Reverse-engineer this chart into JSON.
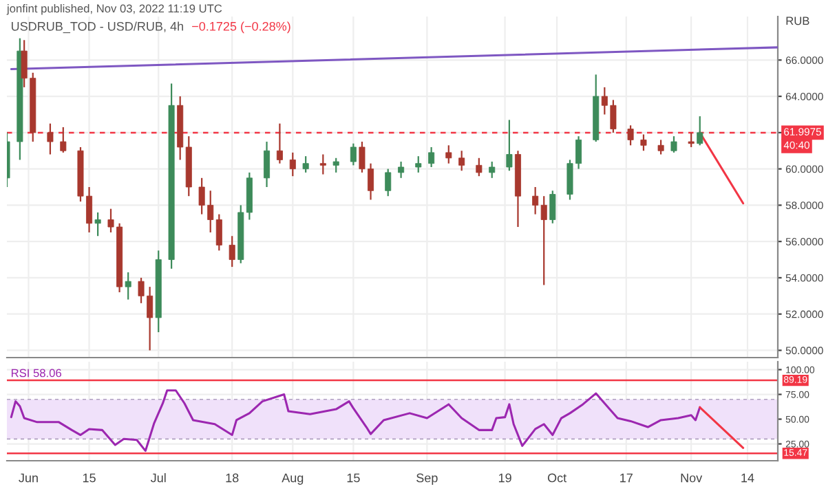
{
  "chart_data": [
    {
      "type": "candlestick",
      "title": "USDRUB_TOD - USD/RUB, 4h",
      "subtitle": "−0.1725 (−0.28%)",
      "ylabel": "RUB",
      "x": [
        "2022-05-27",
        "2022-05-30",
        "2022-05-31",
        "2022-06-02",
        "2022-06-06",
        "2022-06-09",
        "2022-06-13",
        "2022-06-15",
        "2022-06-17",
        "2022-06-20",
        "2022-06-22",
        "2022-06-24",
        "2022-06-27",
        "2022-06-29",
        "2022-07-01",
        "2022-07-04",
        "2022-07-06",
        "2022-07-08",
        "2022-07-11",
        "2022-07-13",
        "2022-07-15",
        "2022-07-18",
        "2022-07-20",
        "2022-07-22",
        "2022-07-26",
        "2022-07-29",
        "2022-08-01",
        "2022-08-04",
        "2022-08-08",
        "2022-08-11",
        "2022-08-15",
        "2022-08-17",
        "2022-08-19",
        "2022-08-23",
        "2022-08-26",
        "2022-08-30",
        "2022-09-02",
        "2022-09-06",
        "2022-09-09",
        "2022-09-13",
        "2022-09-16",
        "2022-09-20",
        "2022-09-22",
        "2022-09-26",
        "2022-09-28",
        "2022-09-30",
        "2022-10-04",
        "2022-10-06",
        "2022-10-10",
        "2022-10-12",
        "2022-10-14",
        "2022-10-18",
        "2022-10-21",
        "2022-10-25",
        "2022-10-28",
        "2022-11-01",
        "2022-11-03"
      ],
      "ohlc": [
        [
          59.5,
          62.0,
          59.0,
          61.5
        ],
        [
          61.5,
          67.2,
          60.5,
          66.5
        ],
        [
          66.5,
          67.1,
          64.5,
          65.0
        ],
        [
          65.0,
          65.3,
          61.5,
          62.0
        ],
        [
          62.0,
          62.5,
          60.8,
          61.5
        ],
        [
          61.5,
          62.3,
          60.9,
          61.0
        ],
        [
          61.0,
          61.2,
          58.2,
          58.5
        ],
        [
          58.5,
          59.0,
          56.5,
          57.0
        ],
        [
          57.0,
          57.6,
          56.3,
          57.2
        ],
        [
          57.2,
          57.8,
          56.5,
          56.8
        ],
        [
          56.8,
          57.0,
          53.2,
          53.5
        ],
        [
          53.5,
          54.3,
          52.8,
          53.8
        ],
        [
          53.8,
          54.0,
          52.6,
          53.0
        ],
        [
          53.0,
          53.5,
          50.0,
          51.8
        ],
        [
          51.8,
          55.5,
          51.0,
          55.0
        ],
        [
          55.0,
          64.7,
          54.5,
          63.5
        ],
        [
          63.5,
          64.0,
          60.5,
          61.2
        ],
        [
          61.2,
          61.8,
          58.5,
          59.0
        ],
        [
          59.0,
          59.5,
          57.5,
          58.0
        ],
        [
          58.0,
          58.8,
          56.5,
          57.2
        ],
        [
          57.2,
          57.5,
          55.5,
          55.8
        ],
        [
          55.8,
          56.3,
          54.6,
          55.0
        ],
        [
          55.0,
          58.0,
          54.8,
          57.6
        ],
        [
          57.6,
          59.8,
          57.2,
          59.5
        ],
        [
          59.5,
          61.5,
          59.0,
          61.0
        ],
        [
          61.0,
          62.5,
          60.3,
          60.5
        ],
        [
          60.5,
          60.9,
          59.6,
          60.0
        ],
        [
          60.0,
          60.7,
          59.8,
          60.3
        ],
        [
          60.3,
          60.8,
          59.7,
          60.2
        ],
        [
          60.2,
          60.6,
          59.8,
          60.4
        ],
        [
          60.4,
          61.4,
          60.2,
          61.2
        ],
        [
          61.2,
          61.5,
          59.8,
          60.0
        ],
        [
          60.0,
          60.3,
          58.3,
          58.8
        ],
        [
          58.8,
          60.0,
          58.5,
          59.8
        ],
        [
          59.8,
          60.4,
          59.5,
          60.1
        ],
        [
          60.1,
          60.7,
          59.8,
          60.3
        ],
        [
          60.3,
          61.2,
          60.1,
          60.9
        ],
        [
          60.9,
          61.3,
          60.3,
          60.6
        ],
        [
          60.6,
          61.0,
          59.9,
          60.2
        ],
        [
          60.2,
          60.6,
          59.6,
          59.8
        ],
        [
          59.8,
          60.4,
          59.5,
          60.1
        ],
        [
          60.1,
          62.7,
          59.9,
          60.8
        ],
        [
          60.8,
          61.0,
          56.8,
          58.5
        ],
        [
          58.5,
          59.0,
          57.5,
          58.0
        ],
        [
          58.0,
          58.5,
          53.6,
          57.2
        ],
        [
          57.2,
          58.8,
          57.0,
          58.6
        ],
        [
          58.6,
          60.5,
          58.3,
          60.3
        ],
        [
          60.3,
          61.8,
          60.0,
          61.6
        ],
        [
          61.6,
          65.2,
          61.5,
          64.0
        ],
        [
          64.0,
          64.5,
          63.0,
          63.5
        ],
        [
          63.5,
          63.8,
          62.0,
          62.2
        ],
        [
          62.2,
          62.4,
          61.3,
          61.6
        ],
        [
          61.6,
          61.9,
          61.0,
          61.3
        ],
        [
          61.3,
          61.6,
          60.8,
          61.0
        ],
        [
          61.0,
          61.8,
          60.9,
          61.5
        ],
        [
          61.5,
          62.0,
          61.2,
          61.4
        ],
        [
          61.4,
          62.9,
          61.3,
          62.0
        ]
      ],
      "colors": [
        "#3d8b5a",
        "#3d8b5a",
        "#a8382e",
        "#a8382e",
        "#a8382e",
        "#a8382e",
        "#a8382e",
        "#a8382e",
        "#3d8b5a",
        "#a8382e",
        "#a8382e",
        "#3d8b5a",
        "#a8382e",
        "#a8382e",
        "#3d8b5a",
        "#3d8b5a",
        "#a8382e",
        "#a8382e",
        "#a8382e",
        "#a8382e",
        "#a8382e",
        "#a8382e",
        "#3d8b5a",
        "#3d8b5a",
        "#3d8b5a",
        "#a8382e",
        "#a8382e",
        "#3d8b5a",
        "#a8382e",
        "#3d8b5a",
        "#3d8b5a",
        "#a8382e",
        "#a8382e",
        "#3d8b5a",
        "#3d8b5a",
        "#3d8b5a",
        "#3d8b5a",
        "#a8382e",
        "#a8382e",
        "#a8382e",
        "#3d8b5a",
        "#3d8b5a",
        "#a8382e",
        "#a8382e",
        "#a8382e",
        "#3d8b5a",
        "#3d8b5a",
        "#3d8b5a",
        "#3d8b5a",
        "#a8382e",
        "#a8382e",
        "#a8382e",
        "#a8382e",
        "#a8382e",
        "#3d8b5a",
        "#a8382e",
        "#3d8b5a"
      ],
      "series": [
        {
          "type": "line",
          "color": "#7e57c2",
          "x": [
            "2022-05-28",
            "2022-11-21"
          ],
          "values": [
            65.5,
            66.7
          ]
        },
        {
          "type": "line",
          "color": "#f23645",
          "x": [
            "2022-11-03",
            "2022-11-13"
          ],
          "values": [
            62.0,
            58.1
          ]
        }
      ],
      "xlim": [
        "2022-05-27",
        "2022-11-21"
      ],
      "ylim": [
        49.6,
        68.4
      ],
      "yticks": [
        {
          "value": 50,
          "label": "50.0000"
        },
        {
          "value": 52,
          "label": "52.0000"
        },
        {
          "value": 54,
          "label": "54.0000"
        },
        {
          "value": 56,
          "label": "56.0000"
        },
        {
          "value": 58,
          "label": "58.0000"
        },
        {
          "value": 60,
          "label": "60.0000"
        },
        {
          "value": 62,
          "label": null
        },
        {
          "value": 64,
          "label": "64.0000"
        },
        {
          "value": 66,
          "label": "66.0000"
        }
      ],
      "ref_lines": [
        {
          "axis": "y",
          "value": 61.9975,
          "label": "61.9975",
          "color": "#f23645",
          "line_style": "dashed"
        }
      ],
      "annotations": [
        "jonfint published, Nov 03, 2022 11:19 UTC",
        "40:40"
      ],
      "grid": true,
      "tick_labels": "y"
    },
    {
      "type": "line",
      "title": "RSI 58.06",
      "series": [
        {
          "color": "#9c27b0",
          "x": [
            "2022-05-28",
            "2022-05-29",
            "2022-05-30",
            "2022-05-31",
            "2022-06-03",
            "2022-06-08",
            "2022-06-11",
            "2022-06-13",
            "2022-06-15",
            "2022-06-18",
            "2022-06-21",
            "2022-06-23",
            "2022-06-26",
            "2022-06-28",
            "2022-06-30",
            "2022-07-02",
            "2022-07-03",
            "2022-07-05",
            "2022-07-07",
            "2022-07-09",
            "2022-07-14",
            "2022-07-18",
            "2022-07-19",
            "2022-07-22",
            "2022-07-25",
            "2022-07-30",
            "2022-07-31",
            "2022-08-05",
            "2022-08-11",
            "2022-08-14",
            "2022-08-15",
            "2022-08-18",
            "2022-08-19",
            "2022-08-22",
            "2022-08-28",
            "2022-09-01",
            "2022-09-06",
            "2022-09-09",
            "2022-09-13",
            "2022-09-16",
            "2022-09-17",
            "2022-09-19",
            "2022-09-20",
            "2022-09-21",
            "2022-09-23",
            "2022-09-26",
            "2022-09-28",
            "2022-09-30",
            "2022-10-02",
            "2022-10-04",
            "2022-10-07",
            "2022-10-10",
            "2022-10-12",
            "2022-10-15",
            "2022-10-18",
            "2022-10-22",
            "2022-10-25",
            "2022-10-29",
            "2022-11-01",
            "2022-11-02",
            "2022-11-03"
          ],
          "values": [
            52,
            68,
            63,
            51,
            47,
            47,
            39,
            34,
            40,
            39,
            24,
            30,
            29,
            18,
            46,
            66,
            79,
            79,
            66,
            49,
            45,
            34,
            49,
            56,
            68,
            75,
            58,
            55,
            60,
            68,
            61,
            42,
            35,
            49,
            56,
            51,
            65,
            51,
            39,
            39,
            51,
            52,
            65,
            45,
            23,
            40,
            45,
            34,
            51,
            56,
            65,
            76,
            66,
            51,
            48,
            42,
            49,
            51,
            54,
            49,
            62
          ]
        },
        {
          "type": "line",
          "color": "#f23645",
          "x": [
            "2022-11-03",
            "2022-11-13"
          ],
          "values": [
            62,
            21
          ]
        }
      ],
      "xlim": [
        "2022-05-27",
        "2022-11-21"
      ],
      "ylim": [
        8,
        108
      ],
      "xticks": [
        {
          "value": "2022-06-01",
          "label": "Jun"
        },
        {
          "value": "2022-06-15",
          "label": "15"
        },
        {
          "value": "2022-07-01",
          "label": "Jul"
        },
        {
          "value": "2022-07-18",
          "label": "18"
        },
        {
          "value": "2022-08-01",
          "label": "Aug"
        },
        {
          "value": "2022-08-15",
          "label": "15"
        },
        {
          "value": "2022-09-01",
          "label": "Sep"
        },
        {
          "value": "2022-09-19",
          "label": "19"
        },
        {
          "value": "2022-10-01",
          "label": "Oct"
        },
        {
          "value": "2022-10-17",
          "label": "17"
        },
        {
          "value": "2022-11-01",
          "label": "Nov"
        },
        {
          "value": "2022-11-14",
          "label": "14"
        }
      ],
      "yticks": [
        {
          "value": 25,
          "label": "25.00"
        },
        {
          "value": 50,
          "label": "50.00"
        },
        {
          "value": 75,
          "label": "75.00"
        },
        {
          "value": 100,
          "label": "100.00"
        }
      ],
      "ref_lines": [
        {
          "axis": "y",
          "value": 89.19,
          "label": "89.19",
          "color": "#f23645",
          "line_style": "solid"
        },
        {
          "axis": "y",
          "value": 15.47,
          "label": "15.47",
          "color": "#f23645",
          "line_style": "solid"
        },
        {
          "axis": "y",
          "value": 70,
          "color": "#b0a0c0",
          "line_style": "dashed"
        },
        {
          "axis": "y",
          "value": 30,
          "color": "#b0a0c0",
          "line_style": "dashed"
        }
      ],
      "bands": [
        {
          "axis": "y",
          "from": 30,
          "to": 70,
          "color": "#f0e1fa"
        }
      ],
      "grid": true
    }
  ]
}
